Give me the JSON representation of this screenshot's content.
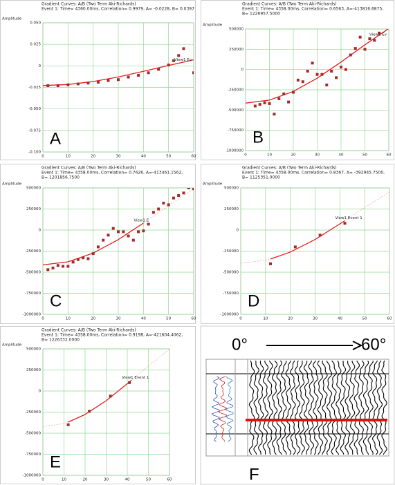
{
  "chart_data": [
    {
      "type": "scatter",
      "panel_label": "A",
      "ylabel": "Amplitude",
      "header": [
        "Gradient Curves: A/B   (Two Term Aki-Richards)",
        "Event 1: Time= 4360.00ms,  Correlation= 0.9979, A= -0.0228, B= 0.0397"
      ],
      "annotation": "View1 Ev",
      "xlim": [
        0,
        60
      ],
      "xticks": [
        0,
        10,
        20,
        30,
        40,
        50,
        60
      ],
      "ylim": [
        -0.1,
        0.05
      ],
      "yticks": [
        {
          "value": 0.05,
          "label": "0.050"
        },
        0.025,
        0,
        -0.025,
        {
          "value": -0.05,
          "label": "-0.050"
        },
        -0.075,
        {
          "value": -0.1,
          "label": "-0.100"
        }
      ],
      "grid": true,
      "series": [
        {
          "mode": "line",
          "dash": true,
          "color": "#f2a8a8",
          "x": [
            0,
            10,
            20,
            30,
            40,
            50,
            60
          ],
          "values": [
            -0.0228,
            -0.0216,
            -0.0182,
            -0.0129,
            -0.0064,
            0.0005,
            0.007
          ]
        },
        {
          "mode": "line",
          "dash": false,
          "color": "#e02020",
          "x": [
            0,
            10,
            20,
            30,
            40,
            50,
            60
          ],
          "values": [
            -0.0228,
            -0.0216,
            -0.0182,
            -0.0129,
            -0.0064,
            0.0005,
            0.007
          ]
        },
        {
          "mode": "markers",
          "color": "#a52a2a",
          "x": [
            2,
            6,
            10,
            14,
            18,
            22,
            26,
            30,
            34,
            38,
            42,
            46,
            50,
            52,
            54,
            56,
            60
          ],
          "values": [
            -0.023,
            -0.023,
            -0.022,
            -0.021,
            -0.02,
            -0.019,
            -0.017,
            -0.016,
            -0.013,
            -0.011,
            -0.008,
            -0.004,
            0.001,
            0.006,
            0.012,
            0.02,
            -0.008
          ]
        }
      ]
    },
    {
      "type": "scatter",
      "panel_label": "B",
      "ylabel": "Amplitude",
      "header": [
        "Gradient Curves: A/B   (Two Term Aki-Richards)",
        "Event 1: Time= 4358.00ms,  Correlation= 0.6563, A=-413816.6875,",
        "B= 1226957.5000"
      ],
      "annotation": "View1 Ev",
      "xlim": [
        0,
        60
      ],
      "xticks": [
        0,
        10,
        20,
        30,
        40,
        50,
        60
      ],
      "ylim": [
        -1000000,
        500000
      ],
      "yticks": [
        500000,
        250000,
        0,
        -250000,
        -500000,
        -750000,
        -1000000
      ],
      "grid": true,
      "series": [
        {
          "mode": "line",
          "dash": true,
          "color": "#f2a8a8",
          "x": [
            0,
            10,
            20,
            30,
            40,
            50,
            60
          ],
          "values": [
            -414000,
            -377000,
            -270000,
            -107000,
            93000,
            306000,
            506000
          ]
        },
        {
          "mode": "line",
          "dash": false,
          "color": "#e02020",
          "x": [
            0,
            10,
            20,
            30,
            40,
            50,
            60
          ],
          "values": [
            -414000,
            -377000,
            -270000,
            -107000,
            93000,
            306000,
            506000
          ]
        },
        {
          "mode": "markers",
          "color": "#a52a2a",
          "x": [
            4,
            6,
            8,
            10,
            12,
            14,
            16,
            18,
            20,
            22,
            24,
            26,
            28,
            30,
            32,
            34,
            36,
            38,
            40,
            42,
            44,
            46,
            48,
            50,
            52,
            54,
            56
          ],
          "values": [
            -450000,
            -430000,
            -410000,
            -420000,
            -550000,
            -360000,
            -300000,
            -400000,
            -280000,
            -130000,
            -150000,
            -20000,
            80000,
            -60000,
            -60000,
            -190000,
            -20000,
            -100000,
            30000,
            0,
            180000,
            260000,
            400000,
            250000,
            380000,
            360000,
            450000
          ]
        }
      ]
    },
    {
      "type": "scatter",
      "panel_label": "C",
      "ylabel": "Amplitude",
      "header": [
        "Gradient Curves: A/B   (Two Term Aki-Richards)",
        "Event 1: Time= 4358.00ms,  Correlation= 0.7626, A=-413461.1562,",
        "B= 1201856.7500"
      ],
      "annotation": "View1 E",
      "xlim": [
        0,
        60
      ],
      "xticks": [
        0,
        10,
        20,
        30,
        40,
        50,
        60
      ],
      "ylim": [
        -1000000,
        500000
      ],
      "yticks": [
        500000,
        250000,
        0,
        -250000,
        -500000,
        -750000,
        -1000000
      ],
      "grid": true,
      "series": [
        {
          "mode": "line",
          "dash": true,
          "color": "#f2a8a8",
          "x": [
            0,
            10,
            20,
            30,
            40,
            50,
            60
          ],
          "values": [
            -413000,
            -377000,
            -273000,
            -113000,
            83000,
            292000,
            488000
          ]
        },
        {
          "mode": "line",
          "dash": false,
          "color": "#e02020",
          "x": [
            0,
            10,
            20,
            30,
            40
          ],
          "values": [
            -413000,
            -377000,
            -273000,
            -113000,
            83000
          ]
        },
        {
          "mode": "markers",
          "color": "#a52a2a",
          "x": [
            2,
            4,
            6,
            8,
            10,
            12,
            14,
            16,
            18,
            20,
            22,
            24,
            26,
            28,
            30,
            32,
            34,
            36,
            38,
            40,
            42,
            44,
            46,
            48,
            50,
            52,
            54,
            56,
            58,
            60
          ],
          "values": [
            -470000,
            -450000,
            -420000,
            -430000,
            -430000,
            -380000,
            -350000,
            -330000,
            -340000,
            -280000,
            -200000,
            -120000,
            -60000,
            20000,
            -20000,
            -20000,
            -70000,
            -120000,
            -20000,
            -10000,
            70000,
            210000,
            250000,
            320000,
            300000,
            380000,
            410000,
            440000,
            500000,
            490000
          ]
        }
      ]
    },
    {
      "type": "scatter",
      "panel_label": "D",
      "ylabel": "Amplitude",
      "header": [
        "Gradient Curves: A/B   (Two Term Aki-Richards)",
        "Event 1: Time= 4358.00ms,  Correlation= 0.8367, A= -392945.7500,",
        "B= 1125351.0000"
      ],
      "annotation": "View1 Event 1",
      "xlim": [
        0,
        60
      ],
      "xticks": [
        0,
        10,
        20,
        30,
        40,
        50,
        60
      ],
      "ylim": [
        -1000000,
        500000
      ],
      "yticks": [
        500000,
        250000,
        0,
        -250000,
        -500000,
        -750000,
        -1000000
      ],
      "grid": true,
      "series": [
        {
          "mode": "line",
          "dash": true,
          "color": "#f2a8a8",
          "x": [
            0,
            10,
            20,
            30,
            40,
            50,
            60
          ],
          "values": [
            -393000,
            -359000,
            -261000,
            -112000,
            72000,
            268000,
            451000
          ]
        },
        {
          "mode": "line",
          "dash": false,
          "color": "#e02020",
          "x": [
            12,
            20,
            30,
            42
          ],
          "values": [
            -344000,
            -261000,
            -112000,
            111000
          ]
        },
        {
          "mode": "markers",
          "color": "#a52a2a",
          "x": [
            12,
            22,
            32,
            42
          ],
          "values": [
            -400000,
            -200000,
            -60000,
            80000
          ]
        }
      ]
    },
    {
      "type": "scatter",
      "panel_label": "E",
      "ylabel": "Amplitude",
      "header": [
        "Gradient Curves: A/B   (Two Term Aki-Richards)",
        "Event 1: Time= 4358.00ms,  Correlation= 0.9198, A=-421604.4062,",
        "B= 1226332.0000"
      ],
      "annotation": "View1 Event 1",
      "xlim": [
        0,
        60
      ],
      "xticks": [
        0,
        10,
        20,
        30,
        40,
        50,
        60
      ],
      "ylim": [
        -1000000,
        500000
      ],
      "yticks": [
        500000,
        250000,
        0,
        -250000,
        -500000,
        -750000,
        -1000000
      ],
      "grid": true,
      "series": [
        {
          "mode": "line",
          "dash": true,
          "color": "#f2a8a8",
          "x": [
            0,
            10,
            20,
            30,
            40,
            50,
            60
          ],
          "values": [
            -422000,
            -385000,
            -278000,
            -115000,
            85000,
            298000,
            498000
          ]
        },
        {
          "mode": "line",
          "dash": false,
          "color": "#e02020",
          "x": [
            12,
            20,
            30,
            42
          ],
          "values": [
            -369000,
            -278000,
            -115000,
            128000
          ]
        },
        {
          "mode": "markers",
          "color": "#a52a2a",
          "x": [
            12,
            22,
            32,
            41
          ],
          "values": [
            -400000,
            -240000,
            -60000,
            100000
          ]
        }
      ]
    }
  ],
  "panel_f": {
    "start_label": "0°",
    "end_label": "60°",
    "label": "F"
  }
}
